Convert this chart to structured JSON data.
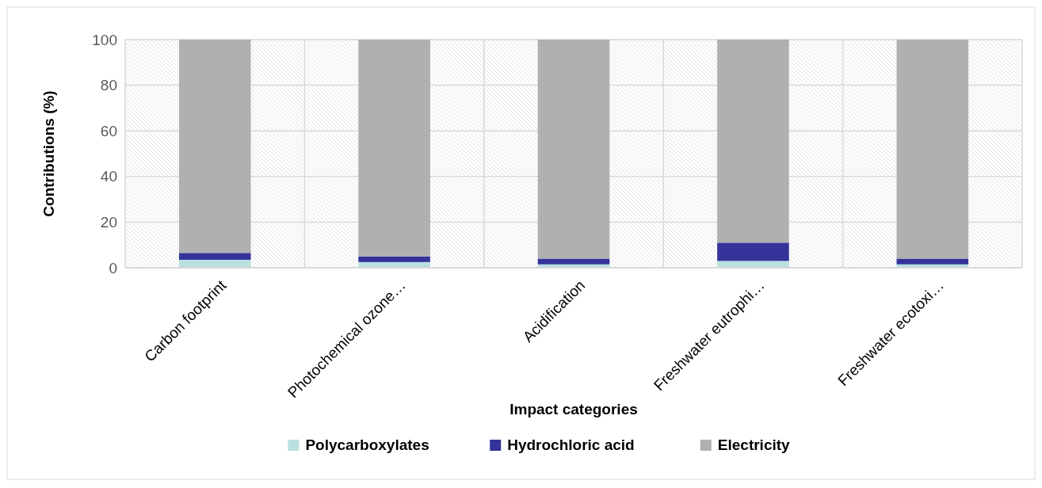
{
  "chart_data": {
    "type": "bar",
    "stacked": true,
    "categories": [
      "Carbon footprint",
      "Photochemical ozone…",
      "Acidification",
      "Freshwater eutrophi…",
      "Freshwater ecotoxi…"
    ],
    "series": [
      {
        "name": "Polycarboxylates",
        "color": "#b9e0e2",
        "values": [
          3.5,
          2.5,
          1.5,
          3,
          1.5
        ]
      },
      {
        "name": "Hydrochloric acid",
        "color": "#333399",
        "values": [
          3,
          2.5,
          2.5,
          8,
          2.5
        ]
      },
      {
        "name": "Electricity",
        "color": "#b0b0b0",
        "values": [
          93.5,
          95,
          96,
          89,
          96
        ]
      }
    ],
    "xlabel": "Impact categories",
    "ylabel": "Contributions (%)",
    "ylim": [
      0,
      100
    ],
    "yticks": [
      0,
      20,
      40,
      60,
      80,
      100
    ],
    "grid": true,
    "legend": "bottom"
  }
}
